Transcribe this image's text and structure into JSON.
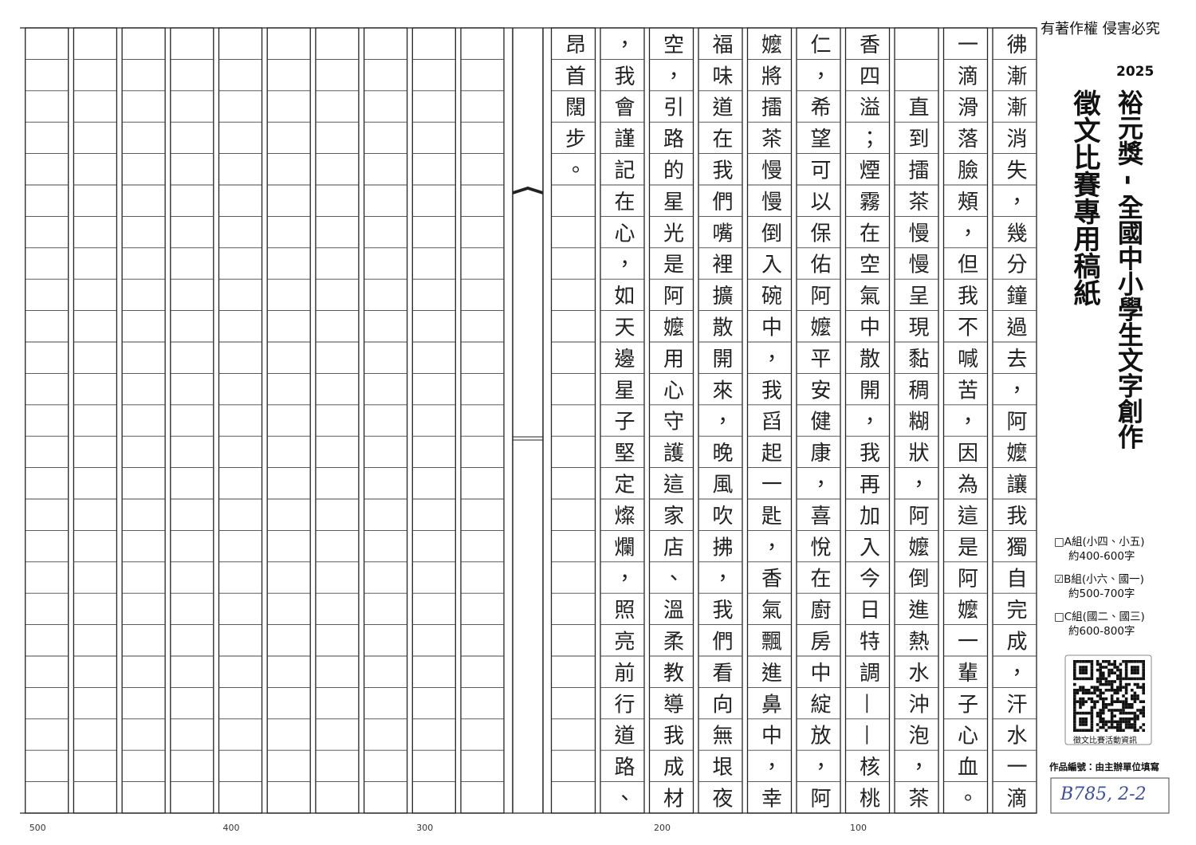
{
  "header": {
    "copyright": "有著作權 侵害必究",
    "year": "2025",
    "title": "裕元獎 - 全國中小學生文字創作",
    "subtitle": "徵文比賽專用稿紙"
  },
  "groups": [
    {
      "label": "□A組(小四、小五)",
      "range": "約400-600字"
    },
    {
      "label": "☑B組(小六、國一)",
      "range": "約500-700字"
    },
    {
      "label": "□C組(國二、國三)",
      "range": "約600-800字"
    }
  ],
  "qr_caption": "徵文比賽活動資訊",
  "entry_number": {
    "label": "作品編號：由主辦單位填寫",
    "value": "B785, 2-2"
  },
  "manuscript": {
    "columns": [
      "彿漸漸消失，幾分鐘過去，阿嬤讓我獨自完成，汗水一滴",
      "一滴滑落臉頰，但我不喊苦，因為這是阿嬤一輩子心血。",
      "　　直到擂茶慢慢呈現黏稠糊狀，阿嬤倒進熱水沖泡，茶",
      "香四溢；煙霧在空氣中散開，我再加入今日特調——核桃",
      "仁，希望可以保佑阿嬤平安健康，喜悅在廚房中綻放，阿",
      "嬤將擂茶慢慢倒入碗中，我舀起一匙，香氣飄進鼻中，幸",
      "福味道在我們嘴裡擴散開來，晚風吹拂，我們看向無垠夜",
      "空，引路的星光是阿嬤用心守護這家店、溫柔教導我成材",
      "，我會謹記在心，如天邊星子堅定燦爛，照亮前行道路、",
      "昂首闊步。"
    ]
  },
  "scale": [
    "100",
    "200",
    "300",
    "400",
    "500"
  ]
}
